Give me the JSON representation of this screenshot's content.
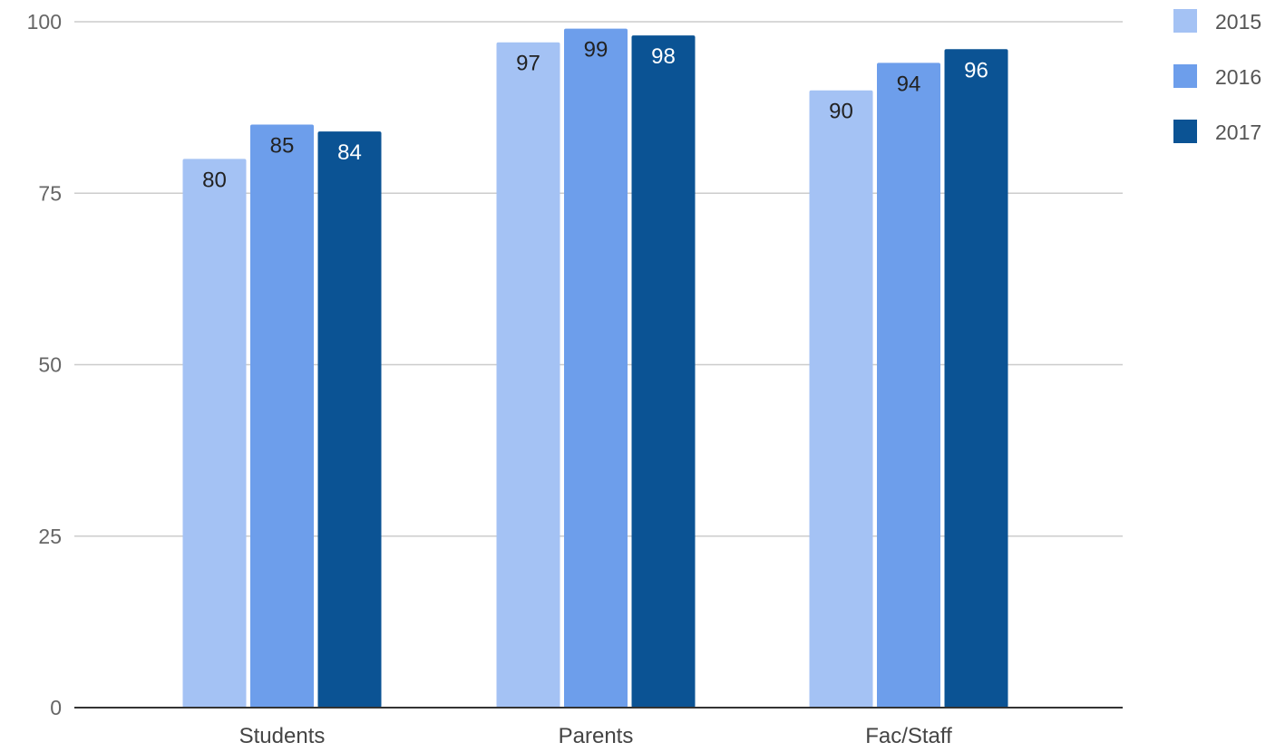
{
  "chart_data": {
    "type": "bar",
    "title": "",
    "xlabel": "",
    "ylabel": "",
    "categories": [
      "Students",
      "Parents",
      "Fac/Staff"
    ],
    "series": [
      {
        "name": "2015",
        "values": [
          80,
          97,
          90
        ],
        "color": "#a4c2f4",
        "label_color": "#222222"
      },
      {
        "name": "2016",
        "values": [
          85,
          99,
          94
        ],
        "color": "#6d9eeb",
        "label_color": "#222222"
      },
      {
        "name": "2017",
        "values": [
          84,
          98,
          96
        ],
        "color": "#0b5394",
        "label_color": "#ffffff"
      }
    ],
    "ylim": [
      0,
      100
    ],
    "yticks": [
      0,
      25,
      50,
      75,
      100
    ],
    "ytick_labels": [
      "0",
      "25",
      "50",
      "75",
      "100"
    ],
    "grid": true,
    "legend_position": "top-right",
    "data_labels": true,
    "gridline_color": "#cccccc",
    "axis_color": "#333333"
  }
}
